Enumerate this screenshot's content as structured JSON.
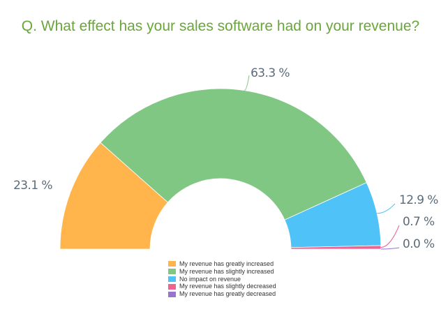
{
  "chart_data": {
    "type": "pie",
    "variant": "semi-donut",
    "title": "Q. What effect has your sales software had on your revenue?",
    "series": [
      {
        "name": "My revenue has greatly increased",
        "value": 23.1,
        "label": "23.1 %",
        "color": "#ffb54c"
      },
      {
        "name": "My revenue has slightly increased",
        "value": 63.3,
        "label": "63.3 %",
        "color": "#80c784"
      },
      {
        "name": "No impact on revenue",
        "value": 12.9,
        "label": "12.9 %",
        "color": "#4fc3f7"
      },
      {
        "name": "My revenue has slightly decreased",
        "value": 0.7,
        "label": "0.7 %",
        "color": "#f06292"
      },
      {
        "name": "My revenue has greatly decreased",
        "value": 0.0,
        "label": "0.0 %",
        "color": "#9575cd"
      }
    ],
    "legend_position": "bottom-center"
  }
}
